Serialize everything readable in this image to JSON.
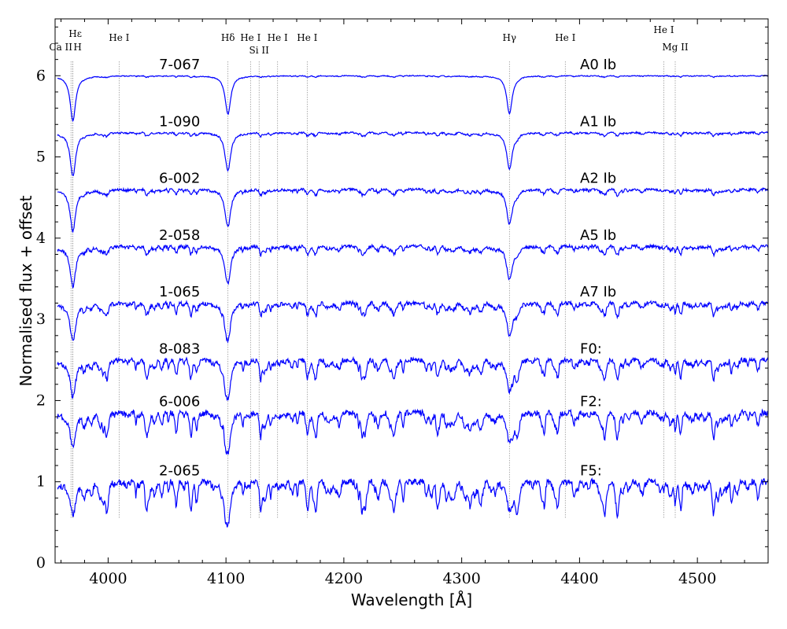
{
  "chart_data": {
    "type": "line",
    "title": "",
    "xlabel": "Wavelength [Å]",
    "ylabel": "Normalised flux + offset",
    "xlim": [
      3955,
      4560
    ],
    "ylim": [
      0,
      6.7
    ],
    "xticks": [
      4000,
      4100,
      4200,
      4300,
      4400,
      4500
    ],
    "yticks": [
      0,
      1,
      2,
      3,
      4,
      5,
      6
    ],
    "line_color": "#0000ff",
    "guide_color": "#888888",
    "series": [
      {
        "name": "7-067",
        "sptype": "A0 Ib",
        "offset": 5,
        "noise": 0.02
      },
      {
        "name": "1-090",
        "sptype": "A1 Ib",
        "offset": 4.3,
        "noise": 0.05
      },
      {
        "name": "6-002",
        "sptype": "A2 Ib",
        "offset": 3.6,
        "noise": 0.08
      },
      {
        "name": "2-058",
        "sptype": "A5 Ib",
        "offset": 2.9,
        "noise": 0.12
      },
      {
        "name": "1-065",
        "sptype": "A7 Ib",
        "offset": 2.2,
        "noise": 0.18
      },
      {
        "name": "8-083",
        "sptype": "F0:",
        "offset": 1.5,
        "noise": 0.28
      },
      {
        "name": "6-006",
        "sptype": "F2:",
        "offset": 0.85,
        "noise": 0.35
      },
      {
        "name": "2-065",
        "sptype": "F5:",
        "offset": 0,
        "noise": 0.45
      }
    ],
    "line_ids": [
      {
        "wavelength": 3968.5,
        "label": "Ca II"
      },
      {
        "wavelength": 3970.1,
        "label": "Hε"
      },
      {
        "wavelength": 3970.1,
        "label": "H"
      },
      {
        "wavelength": 4009.3,
        "label": "He I"
      },
      {
        "wavelength": 4101.7,
        "label": "Hδ"
      },
      {
        "wavelength": 4120.8,
        "label": "He I"
      },
      {
        "wavelength": 4128.1,
        "label": "Si II"
      },
      {
        "wavelength": 4143.8,
        "label": "He I"
      },
      {
        "wavelength": 4168.9,
        "label": "He I"
      },
      {
        "wavelength": 4340.5,
        "label": "Hγ"
      },
      {
        "wavelength": 4387.9,
        "label": "He I"
      },
      {
        "wavelength": 4471.5,
        "label": "He I"
      },
      {
        "wavelength": 4481.2,
        "label": "Mg II"
      }
    ]
  }
}
